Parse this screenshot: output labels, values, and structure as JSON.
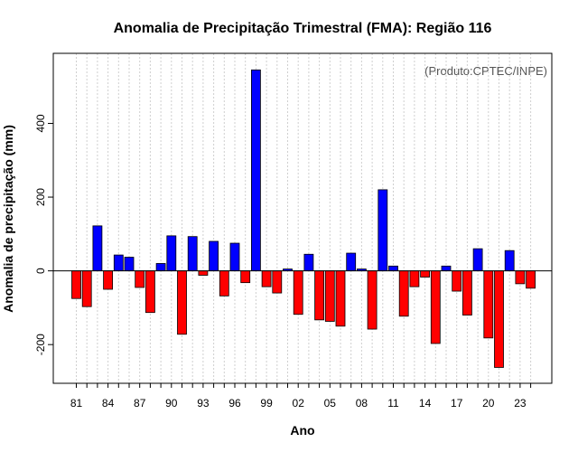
{
  "chart_data": {
    "type": "bar",
    "title": "Anomalia de Precipitação Trimestral (FMA): Região 116",
    "xlabel": "Ano",
    "ylabel": "Anomalia de precipitação (mm)",
    "annotation": "(Produto:CPTEC/INPE)",
    "ylim": [
      -305,
      590
    ],
    "yticks": [
      -200,
      0,
      200,
      400
    ],
    "grid": "vertical-dotted",
    "positive_color": "#0000ff",
    "negative_color": "#ff0000",
    "x_tick_labels": [
      "81",
      "84",
      "87",
      "90",
      "93",
      "96",
      "99",
      "02",
      "05",
      "08",
      "11",
      "14",
      "17",
      "20",
      "23"
    ],
    "categories": [
      "1981",
      "1982",
      "1983",
      "1984",
      "1985",
      "1986",
      "1987",
      "1988",
      "1989",
      "1990",
      "1991",
      "1992",
      "1993",
      "1994",
      "1995",
      "1996",
      "1997",
      "1998",
      "1999",
      "2000",
      "2001",
      "2002",
      "2003",
      "2004",
      "2005",
      "2006",
      "2007",
      "2008",
      "2009",
      "2010",
      "2011",
      "2012",
      "2013",
      "2014",
      "2015",
      "2016",
      "2017",
      "2018",
      "2019",
      "2020",
      "2021",
      "2022",
      "2023",
      "2024"
    ],
    "values": [
      -75,
      -97,
      122,
      -50,
      43,
      37,
      -45,
      -113,
      20,
      95,
      -172,
      93,
      -12,
      80,
      -68,
      75,
      -32,
      545,
      -43,
      -60,
      5,
      -118,
      45,
      -133,
      -137,
      -150,
      48,
      5,
      -158,
      220,
      13,
      -123,
      -43,
      -17,
      -197,
      13,
      -55,
      -120,
      60,
      -182,
      -262,
      55,
      -35,
      -47
    ]
  }
}
